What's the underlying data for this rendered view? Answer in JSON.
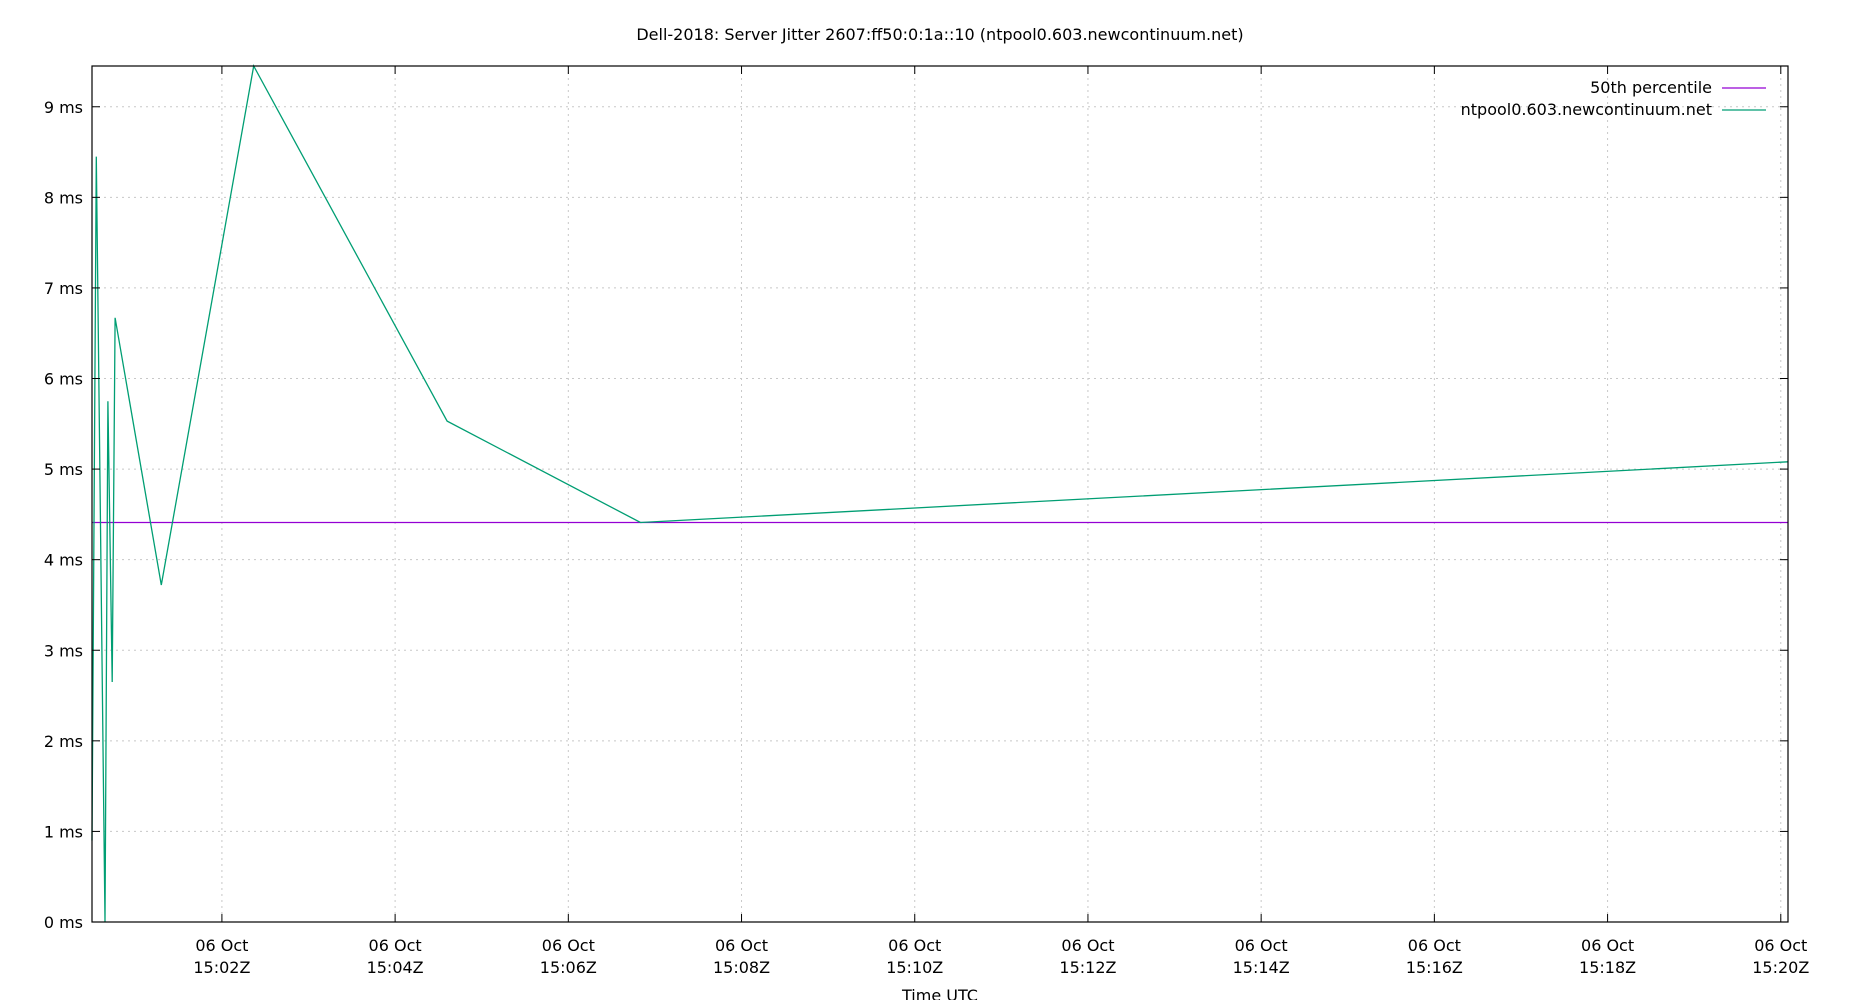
{
  "chart_data": {
    "type": "line",
    "title": "Dell-2018: Server Jitter 2607:ff50:0:1a::10 (ntpool0.603.newcontinuum.net)",
    "xlabel": "Time UTC",
    "ylabel": "",
    "x_range": [
      "15:00:30",
      "15:20:05"
    ],
    "ylim": [
      0,
      9.45
    ],
    "y_ticks": [
      {
        "value": 0,
        "label": "0 ms"
      },
      {
        "value": 1,
        "label": "1 ms"
      },
      {
        "value": 2,
        "label": "2 ms"
      },
      {
        "value": 3,
        "label": "3 ms"
      },
      {
        "value": 4,
        "label": "4 ms"
      },
      {
        "value": 5,
        "label": "5 ms"
      },
      {
        "value": 6,
        "label": "6 ms"
      },
      {
        "value": 7,
        "label": "7 ms"
      },
      {
        "value": 8,
        "label": "8 ms"
      },
      {
        "value": 9,
        "label": "9 ms"
      }
    ],
    "x_ticks": [
      {
        "value": "15:02:00",
        "date": "06 Oct",
        "time": "15:02Z"
      },
      {
        "value": "15:04:00",
        "date": "06 Oct",
        "time": "15:04Z"
      },
      {
        "value": "15:06:00",
        "date": "06 Oct",
        "time": "15:06Z"
      },
      {
        "value": "15:08:00",
        "date": "06 Oct",
        "time": "15:08Z"
      },
      {
        "value": "15:10:00",
        "date": "06 Oct",
        "time": "15:10Z"
      },
      {
        "value": "15:12:00",
        "date": "06 Oct",
        "time": "15:12Z"
      },
      {
        "value": "15:14:00",
        "date": "06 Oct",
        "time": "15:14Z"
      },
      {
        "value": "15:16:00",
        "date": "06 Oct",
        "time": "15:16Z"
      },
      {
        "value": "15:18:00",
        "date": "06 Oct",
        "time": "15:18Z"
      },
      {
        "value": "15:20:00",
        "date": "06 Oct",
        "time": "15:20Z"
      }
    ],
    "grid": true,
    "legend_position": "top-right",
    "series": [
      {
        "name": "50th percentile",
        "color": "#9400d3",
        "points": [
          {
            "x": "15:00:30",
            "y": 4.41
          },
          {
            "x": "15:20:05",
            "y": 4.41
          }
        ]
      },
      {
        "name": "ntpool0.603.newcontinuum.net",
        "color": "#009e73",
        "points": [
          {
            "x": "15:00:30",
            "y": 0.9
          },
          {
            "x": "15:00:33",
            "y": 8.45
          },
          {
            "x": "15:00:39",
            "y": 0.0
          },
          {
            "x": "15:00:41",
            "y": 5.75
          },
          {
            "x": "15:00:44",
            "y": 2.65
          },
          {
            "x": "15:00:46",
            "y": 6.67
          },
          {
            "x": "15:01:18",
            "y": 3.72
          },
          {
            "x": "15:02:22",
            "y": 9.45
          },
          {
            "x": "15:04:36",
            "y": 5.53
          },
          {
            "x": "15:06:50",
            "y": 4.41
          },
          {
            "x": "15:20:05",
            "y": 5.08
          }
        ]
      }
    ]
  }
}
